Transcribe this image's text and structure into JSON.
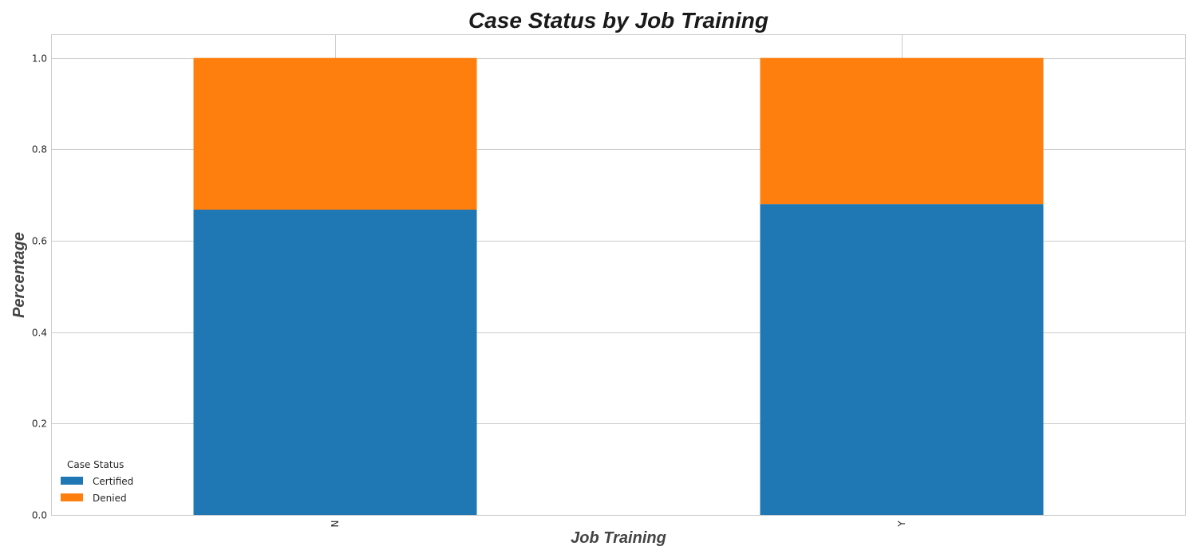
{
  "chart_data": {
    "type": "bar",
    "stacked": true,
    "title": "Case Status by Job Training",
    "xlabel": "Job Training",
    "ylabel": "Percentage",
    "categories": [
      "N",
      "Y"
    ],
    "ylim": [
      0,
      1.05
    ],
    "yticks": [
      "0.0",
      "0.2",
      "0.4",
      "0.6",
      "0.8",
      "1.0"
    ],
    "grid": true,
    "legend": {
      "title": "Case Status",
      "placement": "lower-left"
    },
    "series": [
      {
        "name": "Certified",
        "color": "#1f77b4",
        "values": [
          0.668,
          0.68
        ]
      },
      {
        "name": "Denied",
        "color": "#ff7f0e",
        "values": [
          0.332,
          0.32
        ]
      }
    ]
  }
}
